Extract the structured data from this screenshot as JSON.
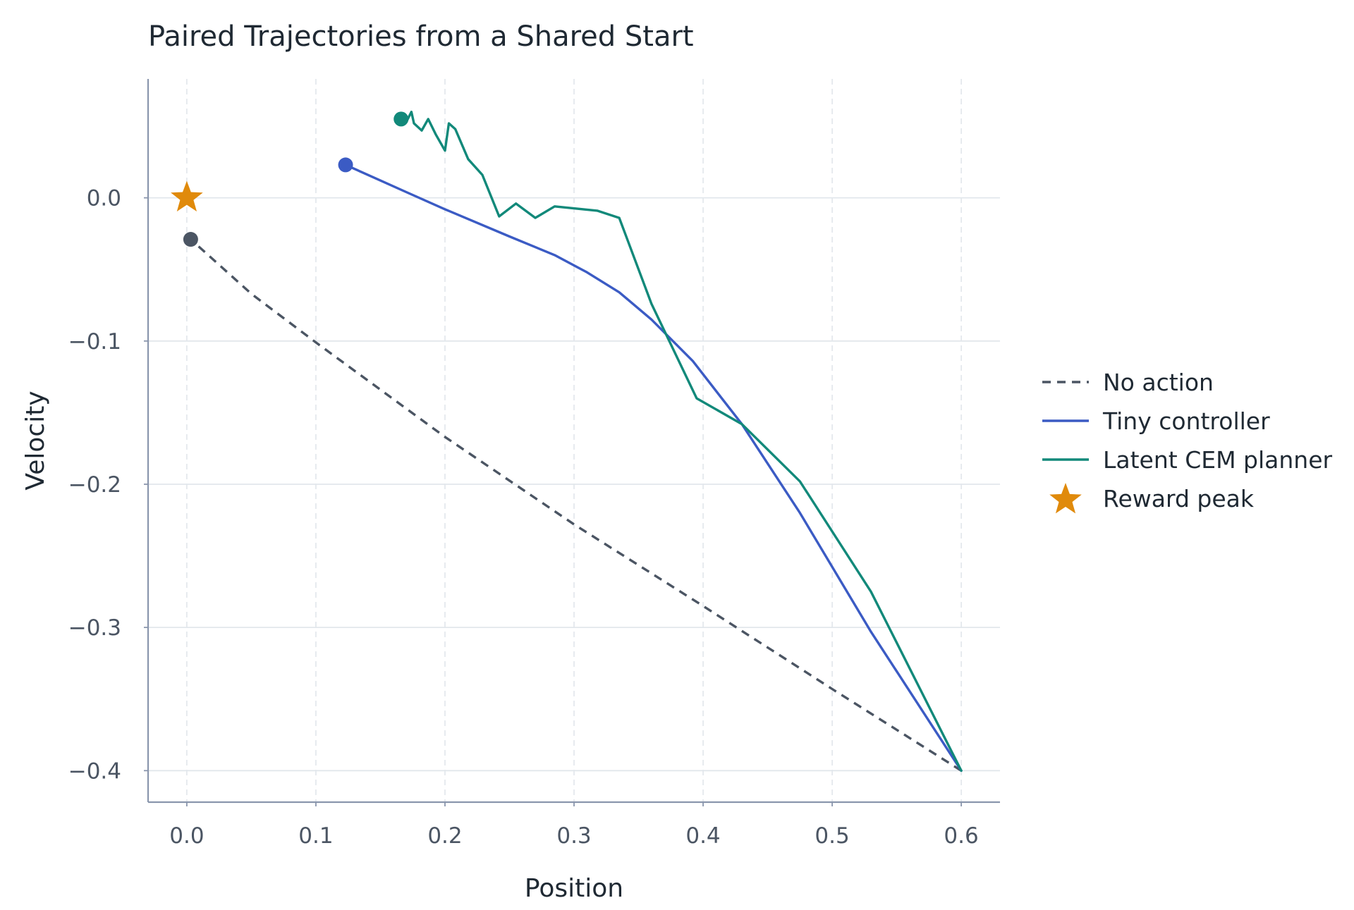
{
  "chart_data": {
    "type": "line",
    "title": "Paired Trajectories from a Shared Start",
    "xlabel": "Position",
    "ylabel": "Velocity",
    "xlim": [
      -0.03,
      0.63
    ],
    "ylim": [
      -0.422,
      0.083
    ],
    "x_ticks": [
      0.0,
      0.1,
      0.2,
      0.3,
      0.4,
      0.5,
      0.6
    ],
    "x_tick_labels": [
      "0.0",
      "0.1",
      "0.2",
      "0.3",
      "0.4",
      "0.5",
      "0.6"
    ],
    "y_ticks": [
      0.0,
      -0.1,
      -0.2,
      -0.3,
      -0.4
    ],
    "y_tick_labels": [
      "0.0",
      "−0.1",
      "−0.2",
      "−0.3",
      "−0.4"
    ],
    "grid": true,
    "legend_position": "right",
    "series": [
      {
        "name": "No action",
        "color": "#4b5563",
        "style": "dashed",
        "start_marker": "circle",
        "x": [
          0.6,
          0.5,
          0.4,
          0.3,
          0.2,
          0.1,
          0.05,
          0.003
        ],
        "y": [
          -0.4,
          -0.343,
          -0.285,
          -0.228,
          -0.167,
          -0.101,
          -0.067,
          -0.029
        ]
      },
      {
        "name": "Tiny controller",
        "color": "#3b5bc4",
        "style": "solid",
        "start_marker": "circle",
        "x": [
          0.6,
          0.53,
          0.475,
          0.43,
          0.392,
          0.36,
          0.335,
          0.31,
          0.285,
          0.25,
          0.2,
          0.17,
          0.123
        ],
        "y": [
          -0.4,
          -0.303,
          -0.22,
          -0.158,
          -0.114,
          -0.085,
          -0.066,
          -0.052,
          -0.04,
          -0.027,
          -0.008,
          0.004,
          0.023
        ]
      },
      {
        "name": "Latent CEM planner",
        "color": "#12897a",
        "style": "solid",
        "start_marker": "circle",
        "x": [
          0.6,
          0.53,
          0.475,
          0.43,
          0.395,
          0.36,
          0.335,
          0.318,
          0.285,
          0.27,
          0.255,
          0.242,
          0.229,
          0.218,
          0.208,
          0.203,
          0.2,
          0.193,
          0.187,
          0.182,
          0.176,
          0.174,
          0.17,
          0.166
        ],
        "y": [
          -0.4,
          -0.275,
          -0.198,
          -0.158,
          -0.14,
          -0.074,
          -0.014,
          -0.009,
          -0.006,
          -0.014,
          -0.004,
          -0.013,
          0.016,
          0.027,
          0.048,
          0.052,
          0.033,
          0.044,
          0.055,
          0.047,
          0.052,
          0.06,
          0.053,
          0.055
        ]
      }
    ],
    "points": [
      {
        "name": "Reward peak",
        "marker": "star",
        "color": "#e08a0b",
        "x": 0.0,
        "y": 0.0
      }
    ]
  }
}
